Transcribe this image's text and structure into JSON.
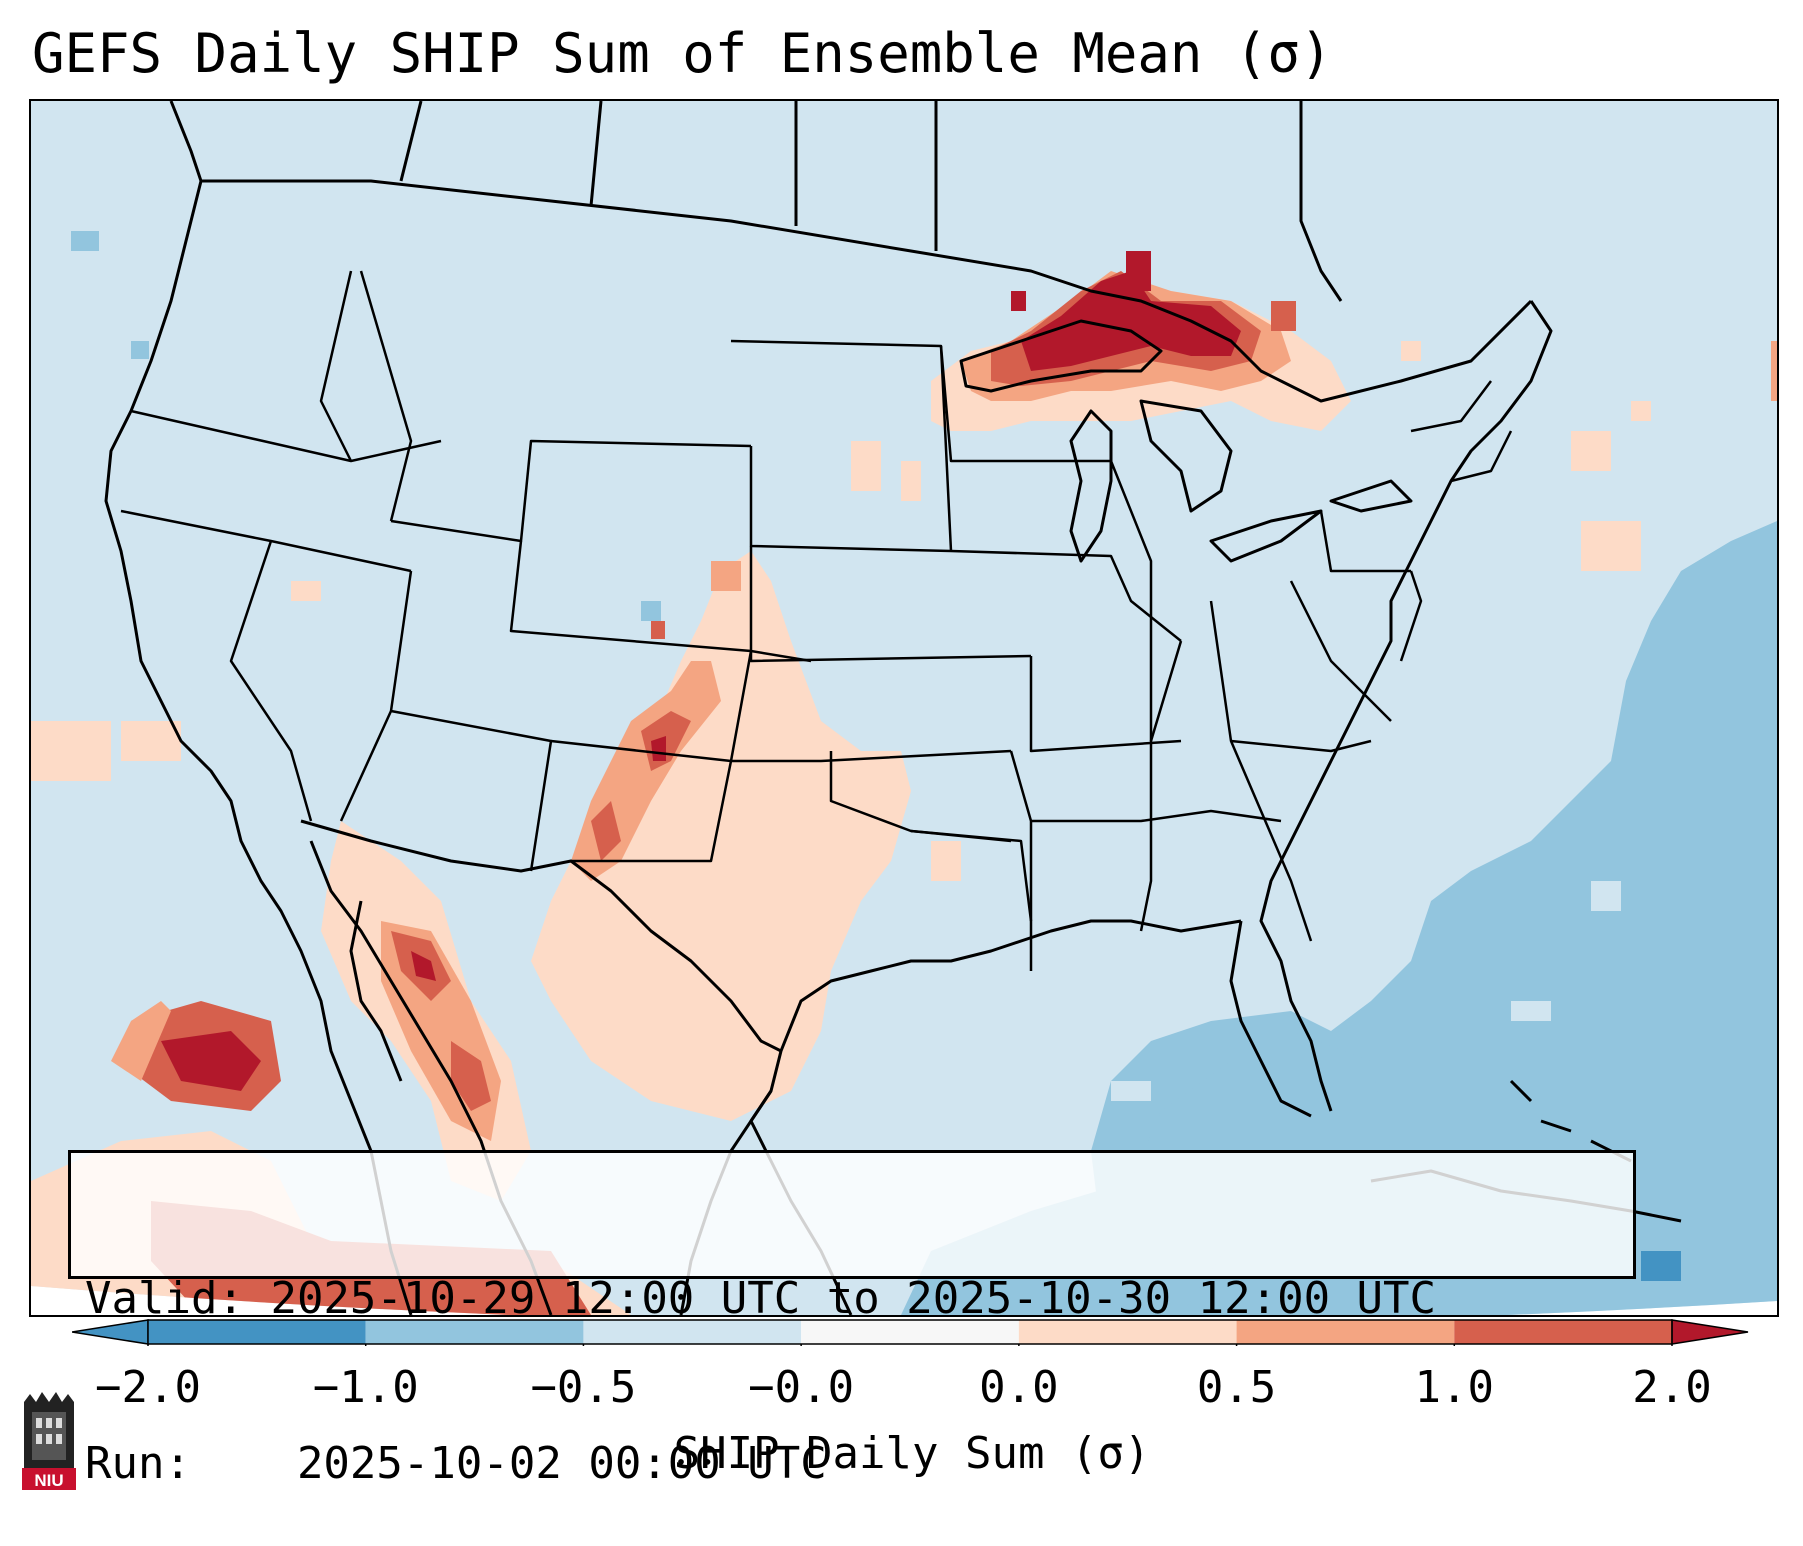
{
  "title": "GEFS Daily SHIP Sum of Ensemble Mean (σ)",
  "info": {
    "valid_label": "Valid:",
    "valid_value": "2025-10-29 12:00 UTC to 2025-10-30 12:00 UTC",
    "run_label": "Run:",
    "run_value": "2025-10-02 00:00 UTC"
  },
  "colorbar": {
    "label": "SHIP Daily Sum (σ)",
    "ticks": [
      "−2.0",
      "−1.0",
      "−0.5",
      "−0.0",
      "0.0",
      "0.5",
      "1.0",
      "2.0"
    ],
    "colors": [
      "#4393c3",
      "#92c5de",
      "#d1e5f0",
      "#f7f7f7",
      "#fddbc7",
      "#f4a582",
      "#d6604d",
      "#b2182b"
    ],
    "extend": "both"
  },
  "logo": {
    "text": "NIU"
  },
  "map": {
    "projection": "Lambert Conformal (CONUS)",
    "background_color": "#d1e5f0",
    "features": [
      "coastlines",
      "country-borders",
      "state-borders"
    ]
  }
}
